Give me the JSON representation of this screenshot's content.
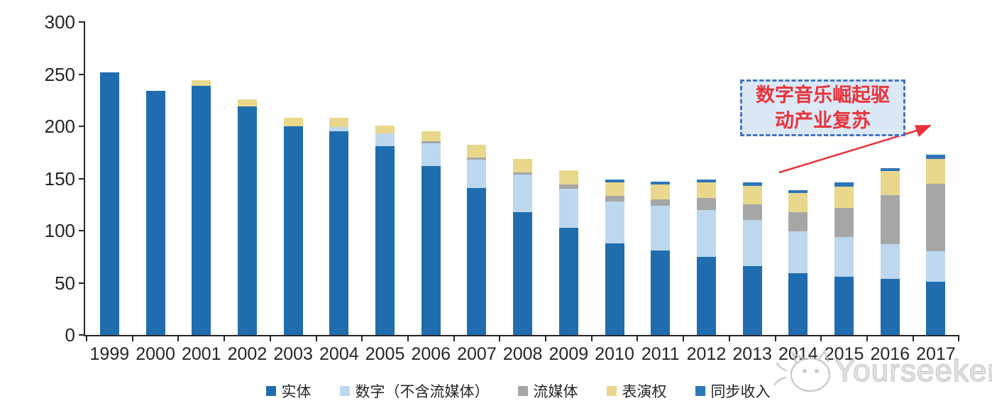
{
  "chart_data": {
    "type": "bar",
    "stacked": true,
    "title": "",
    "xlabel": "",
    "ylabel": "",
    "ylim": [
      0,
      300
    ],
    "yticks": [
      0,
      50,
      100,
      150,
      200,
      250,
      300
    ],
    "grid": false,
    "legend_position": "bottom",
    "categories": [
      "1999",
      "2000",
      "2001",
      "2002",
      "2003",
      "2004",
      "2005",
      "2006",
      "2007",
      "2008",
      "2009",
      "2010",
      "2011",
      "2012",
      "2013",
      "2014",
      "2015",
      "2016",
      "2017"
    ],
    "series": [
      {
        "name": "实体",
        "color": "#1f6dae",
        "values": [
          252,
          234,
          239,
          219,
          200,
          195,
          181,
          162,
          141,
          118,
          103,
          88,
          81,
          75,
          66,
          59,
          56,
          54,
          51
        ]
      },
      {
        "name": "数字（不含流媒体）",
        "color": "#bdd7ee",
        "values": [
          0,
          0,
          0,
          0,
          0,
          4,
          12,
          22,
          27,
          36,
          37,
          40,
          43,
          45,
          44,
          40,
          38,
          33,
          29
        ]
      },
      {
        "name": "流媒体",
        "color": "#a6a6a6",
        "values": [
          0,
          0,
          0,
          0,
          0,
          0,
          0,
          2,
          2,
          2,
          4,
          5,
          6,
          11,
          15,
          19,
          28,
          47,
          65
        ]
      },
      {
        "name": "表演权",
        "color": "#e9d88c",
        "values": [
          0,
          0,
          5,
          7,
          8,
          9,
          8,
          9,
          12,
          13,
          14,
          13,
          14,
          15,
          18,
          18,
          20,
          23,
          24
        ]
      },
      {
        "name": "同步收入",
        "color": "#2e75b6",
        "values": [
          0,
          0,
          0,
          0,
          0,
          0,
          0,
          0,
          0,
          0,
          0,
          3,
          3,
          3,
          3,
          3,
          4,
          3,
          4
        ]
      }
    ]
  },
  "annotation": {
    "line1": "数字音乐崛起驱",
    "line2": "动产业复苏",
    "border_color": "#4472c4",
    "fill_color": "#dbe8f6",
    "text_color": "#e8333a",
    "arrow_color": "#e8333a"
  },
  "watermark": {
    "text": "Yourseeker"
  },
  "colors": {
    "axis": "#262626",
    "background": "#ffffff"
  }
}
